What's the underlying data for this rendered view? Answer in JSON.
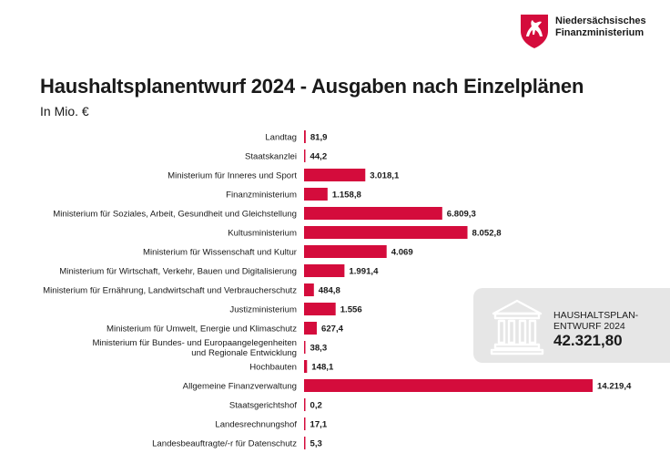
{
  "header": {
    "logo_line1": "Niedersächsisches",
    "logo_line2": "Finanzministerium",
    "title": "Haushaltsplanentwurf 2024 - Ausgaben nach Einzelplänen",
    "subtitle": "In Mio. €"
  },
  "colors": {
    "bar": "#d40c3c",
    "info_bg": "#e6e6e6",
    "icon": "#ffffff"
  },
  "info_box": {
    "icon": "bank-building-icon",
    "label_line1": "HAUSHALTSPLAN-",
    "label_line2": "ENTWURF 2024",
    "value": "42.321,80"
  },
  "chart_data": {
    "type": "bar",
    "orientation": "horizontal",
    "title": "Haushaltsplanentwurf 2024 - Ausgaben nach Einzelplänen",
    "unit": "In Mio. €",
    "xlim": [
      0,
      14219.4
    ],
    "categories": [
      [
        "Landtag"
      ],
      [
        "Staatskanzlei"
      ],
      [
        "Ministerium für Inneres und Sport"
      ],
      [
        "Finanzministerium"
      ],
      [
        "Ministerium für Soziales, Arbeit, Gesundheit und Gleichstellung"
      ],
      [
        "Kultusministerium"
      ],
      [
        "Ministerium für Wissenschaft und Kultur"
      ],
      [
        "Ministerium für Wirtschaft, Verkehr, Bauen und Digitalisierung"
      ],
      [
        "Ministerium für Ernährung, Landwirtschaft und Verbraucherschutz"
      ],
      [
        "Justizministerium"
      ],
      [
        "Ministerium für Umwelt, Energie und Klimaschutz"
      ],
      [
        "Ministerium für Bundes- und Europaangelegenheiten",
        "und Regionale Entwicklung"
      ],
      [
        "Hochbauten"
      ],
      [
        "Allgemeine Finanzverwaltung"
      ],
      [
        "Staatsgerichtshof"
      ],
      [
        "Landesrechnungshof"
      ],
      [
        "Landesbeauftragte/-r für Datenschutz"
      ]
    ],
    "values": [
      81.9,
      44.2,
      3018.1,
      1158.8,
      6809.3,
      8052.8,
      4069,
      1991.4,
      484.8,
      1556,
      627.4,
      38.3,
      148.1,
      14219.4,
      0.2,
      17.1,
      5.3
    ],
    "value_labels": [
      "81,9",
      "44,2",
      "3.018,1",
      "1.158,8",
      "6.809,3",
      "8.052,8",
      "4.069",
      "1.991,4",
      "484,8",
      "1.556",
      "627,4",
      "38,3",
      "148,1",
      "14.219,4",
      "0,2",
      "17,1",
      "5,3"
    ]
  }
}
